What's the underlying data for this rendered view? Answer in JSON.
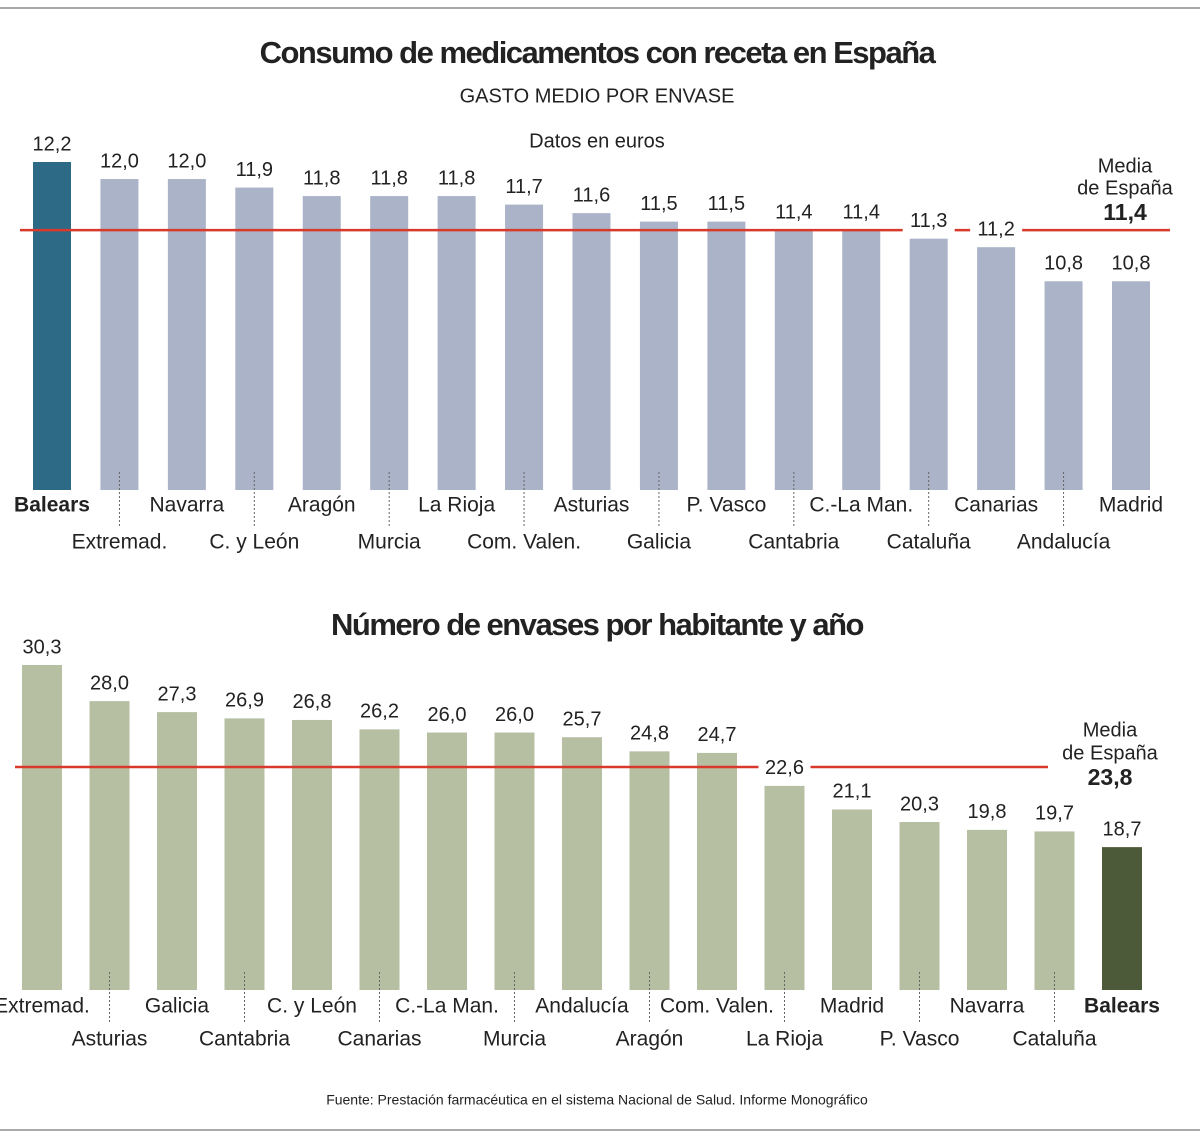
{
  "chart_data": [
    {
      "type": "bar",
      "title": "Consumo de medicamentos con receta en España",
      "subtitle": "GASTO MEDIO POR ENVASE",
      "note": "Datos en euros",
      "categories": [
        "Balears",
        "Extremad.",
        "Navarra",
        "C. y León",
        "Aragón",
        "Murcia",
        "La Rioja",
        "Com. Valen.",
        "Asturias",
        "Galicia",
        "P. Vasco",
        "Cantabria",
        "C.-La Man.",
        "Cataluña",
        "Canarias",
        "Andalucía",
        "Madrid"
      ],
      "values": [
        12.2,
        12.0,
        12.0,
        11.9,
        11.8,
        11.8,
        11.8,
        11.7,
        11.6,
        11.5,
        11.5,
        11.4,
        11.4,
        11.3,
        11.2,
        10.8,
        10.8
      ],
      "value_labels": [
        "12,2",
        "12,0",
        "12,0",
        "11,9",
        "11,8",
        "11,8",
        "11,8",
        "11,7",
        "11,6",
        "11,5",
        "11,5",
        "11,4",
        "11,4",
        "11,3",
        "11,2",
        "10,8",
        "10,8"
      ],
      "colors": [
        "#2c6a86",
        "#aab3c7",
        "#aab3c7",
        "#aab3c7",
        "#aab3c7",
        "#aab3c7",
        "#aab3c7",
        "#aab3c7",
        "#aab3c7",
        "#aab3c7",
        "#aab3c7",
        "#aab3c7",
        "#aab3c7",
        "#aab3c7",
        "#aab3c7",
        "#aab3c7",
        "#aab3c7"
      ],
      "ylim": [
        8.35,
        12.2
      ],
      "reference": {
        "label_lines": [
          "Media",
          "de España"
        ],
        "value": 11.4,
        "value_label": "11,4",
        "color": "#d8392b"
      }
    },
    {
      "type": "bar",
      "title": "Número de envases por habitante y año",
      "categories": [
        "Extremad.",
        "Asturias",
        "Galicia",
        "Cantabria",
        "C. y León",
        "Canarias",
        "C.-La Man.",
        "Murcia",
        "Andalucía",
        "Aragón",
        "Com. Valen.",
        "La Rioja",
        "Madrid",
        "P. Vasco",
        "Navarra",
        "Cataluña",
        "Balears"
      ],
      "values": [
        30.3,
        28.0,
        27.3,
        26.9,
        26.8,
        26.2,
        26.0,
        26.0,
        25.7,
        24.8,
        24.7,
        22.6,
        21.1,
        20.3,
        19.8,
        19.7,
        18.7
      ],
      "value_labels": [
        "30,3",
        "28,0",
        "27,3",
        "26,9",
        "26,8",
        "26,2",
        "26,0",
        "26,0",
        "25,7",
        "24,8",
        "24,7",
        "22,6",
        "21,1",
        "20,3",
        "19,8",
        "19,7",
        "18,7"
      ],
      "colors": [
        "#b7bfa3",
        "#b7bfa3",
        "#b7bfa3",
        "#b7bfa3",
        "#b7bfa3",
        "#b7bfa3",
        "#b7bfa3",
        "#b7bfa3",
        "#b7bfa3",
        "#b7bfa3",
        "#b7bfa3",
        "#b7bfa3",
        "#b7bfa3",
        "#b7bfa3",
        "#b7bfa3",
        "#b7bfa3",
        "#4d5a39"
      ],
      "ylim": [
        9.6,
        30.3
      ],
      "reference": {
        "label_lines": [
          "Media",
          "de España"
        ],
        "value": 23.8,
        "value_label": "23,8",
        "color": "#d8392b"
      }
    }
  ],
  "source": "Fuente: Prestación farmacéutica en el sistema Nacional de Salud. Informe Monográfico"
}
